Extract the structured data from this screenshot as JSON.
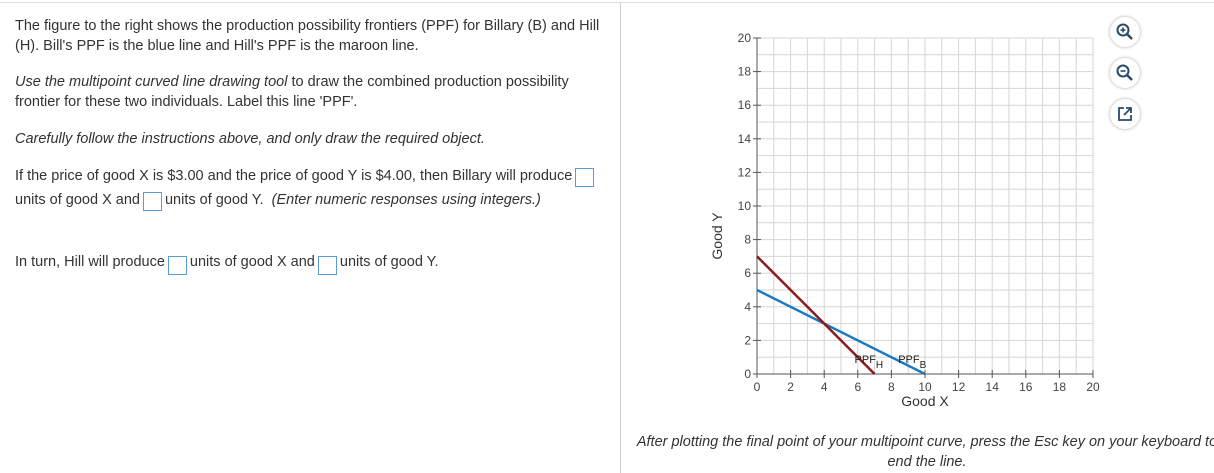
{
  "question": {
    "intro": "The figure to the right shows the production possibility frontiers (PPF) for Billary (B) and Hill (H).  Bill's PPF is the blue line and Hill's PPF is the maroon line.",
    "instr_italic": "Use the multipoint curved line drawing tool",
    "instr_rest": " to draw the combined production possibility frontier for these two individuals. Label this line 'PPF'.",
    "careful": "Carefully follow the instructions above, and only draw the required object.",
    "q1_a": "If the price of good X is $3.00 and the price of good Y is $4.00, then Billary will produce",
    "q1_b": "units of good X and",
    "q1_c": "units of good Y.",
    "q1_hint": "(Enter numeric responses using integers.)",
    "q2_a": "In turn, Hill will produce",
    "q2_b": "units of good X and",
    "q2_c": "units of good Y."
  },
  "answers": {
    "billary_x": "",
    "billary_y": "",
    "hill_x": "",
    "hill_y": ""
  },
  "tools": {
    "zoom_in": "zoom-in-icon",
    "zoom_out": "zoom-out-icon",
    "popout": "popout-icon"
  },
  "footer": "After plotting the final point of your multipoint curve, press the Esc key on your keyboard to end the line.",
  "chart_data": {
    "type": "line",
    "xlabel": "Good X",
    "ylabel": "Good Y",
    "xlim": [
      0,
      20
    ],
    "ylim": [
      0,
      20
    ],
    "xticks": [
      0,
      2,
      4,
      6,
      8,
      10,
      12,
      14,
      16,
      18,
      20
    ],
    "yticks": [
      0,
      2,
      4,
      6,
      8,
      10,
      12,
      14,
      16,
      18,
      20
    ],
    "grid": true,
    "series": [
      {
        "name": "PPF",
        "subscript": "B",
        "color": "#1a7ac4",
        "x": [
          0,
          10
        ],
        "y": [
          5,
          0
        ]
      },
      {
        "name": "PPF",
        "subscript": "H",
        "color": "#8b1a1a",
        "x": [
          0,
          7
        ],
        "y": [
          7,
          0
        ]
      }
    ]
  }
}
